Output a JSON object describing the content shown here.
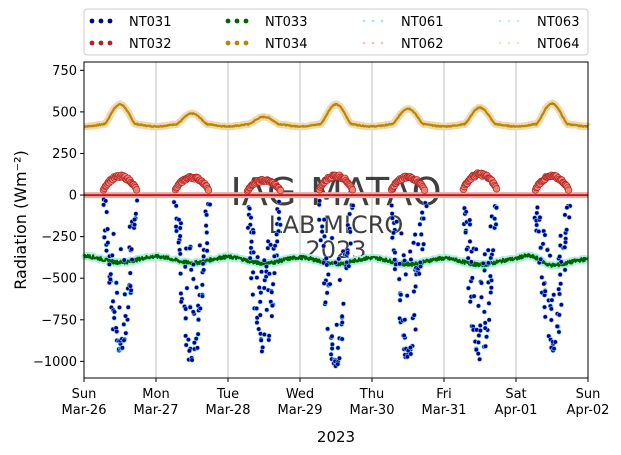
{
  "chart_data": {
    "type": "scatter",
    "xlabel": "2023",
    "ylabel": "Radiation (Wm⁻²)",
    "ylim": [
      -1100,
      800
    ],
    "yticks": [
      750,
      500,
      250,
      0,
      -250,
      -500,
      -750,
      -1000
    ],
    "x_range": [
      "2023-03-26",
      "2023-04-02"
    ],
    "x_ticks": [
      {
        "day": "Sun",
        "date": "Mar-26"
      },
      {
        "day": "Mon",
        "date": "Mar-27"
      },
      {
        "day": "Tue",
        "date": "Mar-28"
      },
      {
        "day": "Wed",
        "date": "Mar-29"
      },
      {
        "day": "Thu",
        "date": "Mar-30"
      },
      {
        "day": "Fri",
        "date": "Mar-31"
      },
      {
        "day": "Sat",
        "date": "Apr-01"
      },
      {
        "day": "Sun",
        "date": "Apr-02"
      }
    ],
    "grid": "vertical",
    "legend_position": "top",
    "legend": [
      {
        "name": "NT031",
        "color": "#00008b",
        "style": "dots"
      },
      {
        "name": "NT032",
        "color": "#b22222",
        "style": "dots"
      },
      {
        "name": "NT033",
        "color": "#006400",
        "style": "dots"
      },
      {
        "name": "NT034",
        "color": "#b8860b",
        "style": "dots"
      },
      {
        "name": "NT061",
        "color": "#87cefa",
        "style": "faint"
      },
      {
        "name": "NT062",
        "color": "#f4a6a6",
        "style": "faint"
      },
      {
        "name": "NT063",
        "color": "#a8e8d8",
        "style": "faint"
      },
      {
        "name": "NT064",
        "color": "#f0d8a8",
        "style": "faint"
      }
    ],
    "series": [
      {
        "name": "NT034",
        "description": "Incoming longwave, ~410–430 baseline with daily peaks",
        "daily_peaks": [
          545,
          490,
          470,
          545,
          520,
          525,
          550
        ],
        "baseline": 425
      },
      {
        "name": "NT032",
        "description": "Outgoing shortwave, ~0 at night with daily peaks",
        "daily_peaks": [
          120,
          115,
          95,
          125,
          115,
          135,
          120
        ],
        "baseline": 0
      },
      {
        "name": "NT033",
        "description": "Outgoing longwave, ~-380 to -420",
        "values_range": [
          -450,
          -350
        ],
        "baseline": -400
      },
      {
        "name": "NT031",
        "description": "Net shortwave, 0 at night with daily troughs",
        "daily_troughs": [
          -970,
          -1030,
          -960,
          -1050,
          -990,
          -1010,
          -960
        ],
        "baseline": 0
      }
    ],
    "watermark": [
      "IAG-MATAO",
      "LAB MICRO",
      "2023"
    ]
  }
}
